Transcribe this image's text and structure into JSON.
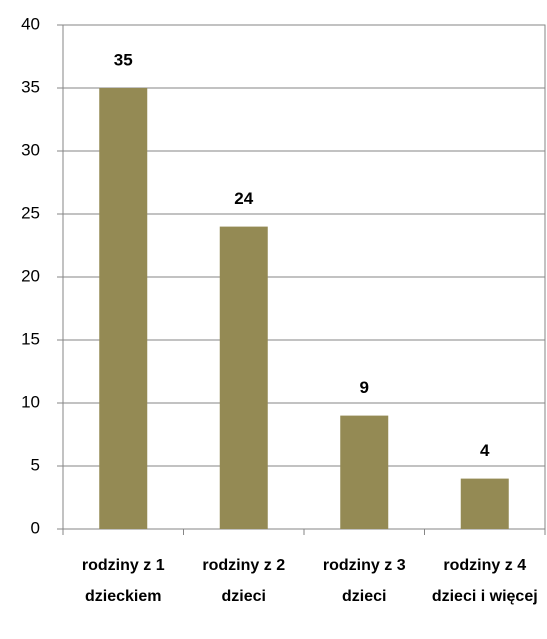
{
  "chart_data": {
    "type": "bar",
    "categories": [
      "rodziny z 1 dzieckiem",
      "rodziny z 2 dzieci",
      "rodziny z 3 dzieci",
      "rodziny z 4 dzieci i więcej"
    ],
    "values": [
      35,
      24,
      9,
      4
    ],
    "color": "#948a54",
    "ylim": [
      0,
      40
    ],
    "yticks": [
      0,
      5,
      10,
      15,
      20,
      25,
      30,
      35,
      40
    ],
    "grid": true
  }
}
